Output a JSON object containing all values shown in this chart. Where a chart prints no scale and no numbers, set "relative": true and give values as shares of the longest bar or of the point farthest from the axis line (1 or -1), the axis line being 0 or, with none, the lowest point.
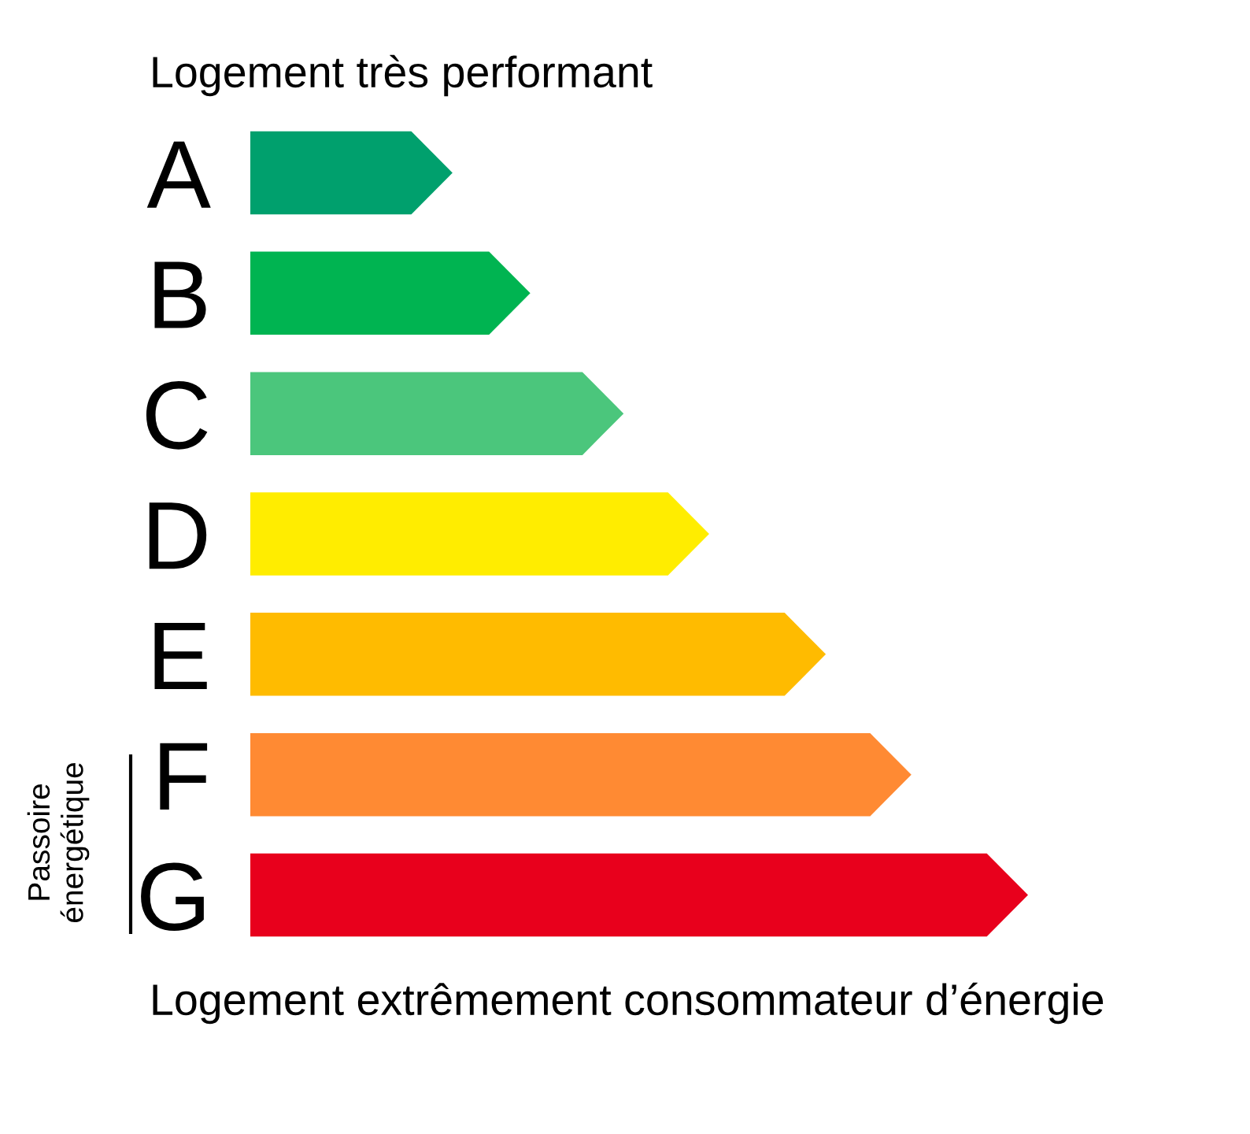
{
  "chart_data": {
    "type": "bar",
    "orientation": "horizontal",
    "relative": true,
    "tick_labels": "y",
    "categories": [
      "A",
      "B",
      "C",
      "D",
      "E",
      "F",
      "G"
    ],
    "values": [
      0.26,
      0.36,
      0.48,
      0.59,
      0.74,
      0.85,
      1
    ],
    "colors": [
      "#00a06d",
      "#00b451",
      "#4bc67c",
      "#ffed00",
      "#ffbb00",
      "#ff8a33",
      "#e8001c"
    ],
    "annotations": [
      "Logement très performant",
      "Logement extrêmement consommateur d’énergie",
      "Passoire énergétique"
    ]
  }
}
